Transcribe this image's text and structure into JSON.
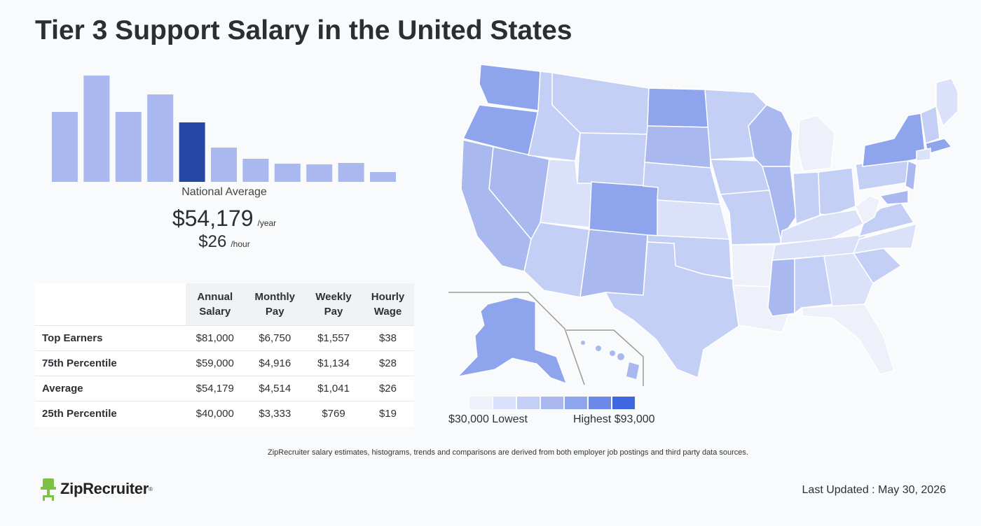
{
  "title": "Tier 3 Support Salary in the United States",
  "chart_data": {
    "type": "bar",
    "title": "",
    "values": [
      100,
      152,
      100,
      125,
      85,
      49,
      33,
      26,
      25,
      27,
      14
    ],
    "highlight_index": 4,
    "colors": {
      "bar": "#a9b9f0",
      "highlight": "#2647a6"
    }
  },
  "national": {
    "label": "National Average",
    "annual": "$54,179",
    "annual_unit": "/year",
    "hourly": "$26",
    "hourly_unit": "/hour"
  },
  "table": {
    "headers": [
      [
        "Annual",
        "Salary"
      ],
      [
        "Monthly",
        "Pay"
      ],
      [
        "Weekly",
        "Pay"
      ],
      [
        "Hourly",
        "Wage"
      ]
    ],
    "rows": [
      {
        "label": "Top Earners",
        "values": [
          "$81,000",
          "$6,750",
          "$1,557",
          "$38"
        ]
      },
      {
        "label": "75th Percentile",
        "values": [
          "$59,000",
          "$4,916",
          "$1,134",
          "$28"
        ]
      },
      {
        "label": "Average",
        "values": [
          "$54,179",
          "$4,514",
          "$1,041",
          "$26"
        ]
      },
      {
        "label": "25th Percentile",
        "values": [
          "$40,000",
          "$3,333",
          "$769",
          "$19"
        ]
      }
    ]
  },
  "legend": {
    "low": "$30,000 Lowest",
    "high": "Highest $93,000",
    "colors": [
      "#eef1fa",
      "#dae1f8",
      "#c3cff5",
      "#a9b9f0",
      "#8ea4ec",
      "#6b88e6",
      "#3e67e0"
    ]
  },
  "footnote": "ZipRecruiter salary estimates, histograms, trends and comparisons are derived from both employer job postings and third party data sources.",
  "brand": "ZipRecruiter",
  "last_updated": "Last Updated : May 30, 2026"
}
